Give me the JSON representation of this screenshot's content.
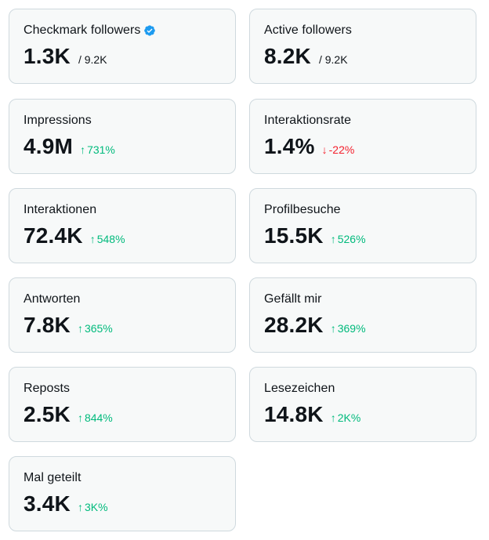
{
  "colors": {
    "positive": "#00ba7c",
    "negative": "#f4212e",
    "verified": "#1d9bf0",
    "card_border": "#cfd9de",
    "card_bg": "#f7f9f9"
  },
  "cards": [
    {
      "label": "Checkmark followers",
      "value": "1.3K",
      "suffix": "/ 9.2K",
      "icon": "verified-badge-icon"
    },
    {
      "label": "Active followers",
      "value": "8.2K",
      "suffix": "/ 9.2K"
    },
    {
      "label": "Impressions",
      "value": "4.9M",
      "delta": "731%",
      "direction": "up"
    },
    {
      "label": "Interaktionsrate",
      "value": "1.4%",
      "delta": "-22%",
      "direction": "down"
    },
    {
      "label": "Interaktionen",
      "value": "72.4K",
      "delta": "548%",
      "direction": "up"
    },
    {
      "label": "Profilbesuche",
      "value": "15.5K",
      "delta": "526%",
      "direction": "up"
    },
    {
      "label": "Antworten",
      "value": "7.8K",
      "delta": "365%",
      "direction": "up"
    },
    {
      "label": "Gefällt mir",
      "value": "28.2K",
      "delta": "369%",
      "direction": "up"
    },
    {
      "label": "Reposts",
      "value": "2.5K",
      "delta": "844%",
      "direction": "up"
    },
    {
      "label": "Lesezeichen",
      "value": "14.8K",
      "delta": "2K%",
      "direction": "up"
    },
    {
      "label": "Mal geteilt",
      "value": "3.4K",
      "delta": "3K%",
      "direction": "up"
    }
  ]
}
